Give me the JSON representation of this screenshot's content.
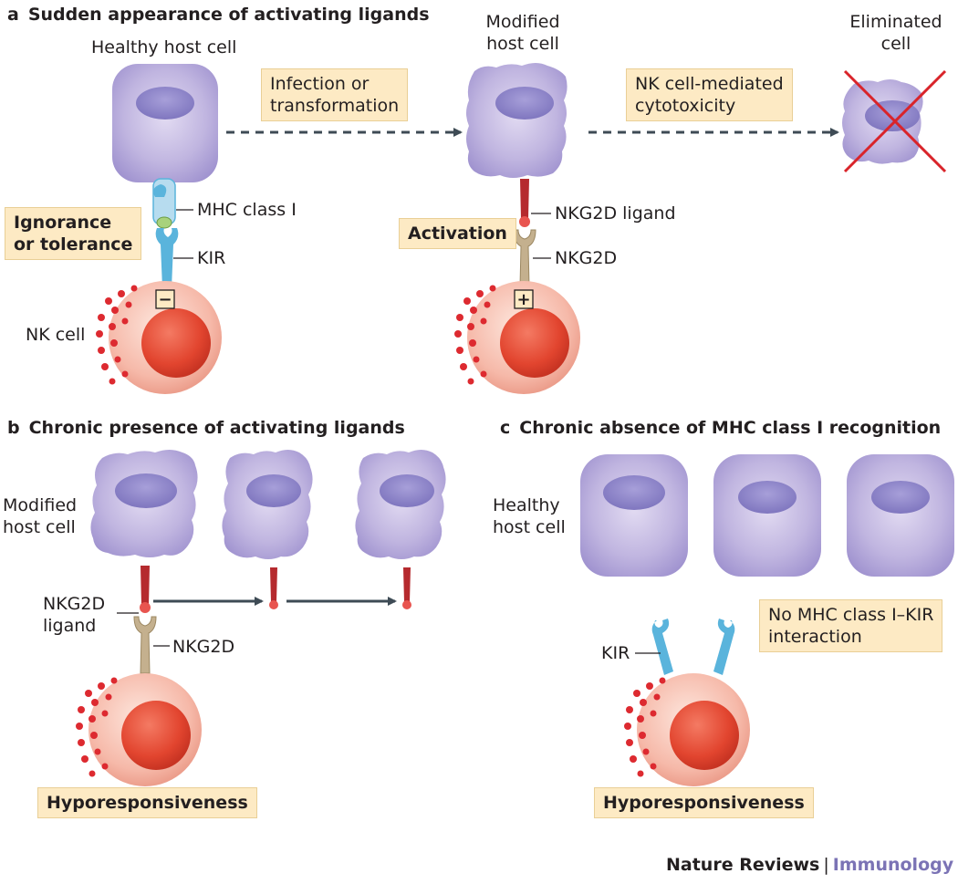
{
  "panel_a": {
    "letter": "a",
    "title": "Sudden appearance of activating ligands",
    "healthy_cell": "Healthy host cell",
    "modified_cell": [
      "Modified",
      "host cell"
    ],
    "eliminated_cell": [
      "Eliminated",
      "cell"
    ],
    "step1": [
      "Infection or",
      "transformation"
    ],
    "step2": [
      "NK cell-mediated",
      "cytotoxicity"
    ],
    "ignorance": [
      "Ignorance",
      "or tolerance"
    ],
    "mhc": "MHC class I",
    "kir": "KIR",
    "nk_cell": "NK cell",
    "activation": "Activation",
    "nkg2d_ligand": "NKG2D ligand",
    "nkg2d": "NKG2D",
    "minus_sign": "−",
    "plus_sign": "+"
  },
  "panel_b": {
    "letter": "b",
    "title": "Chronic presence of activating ligands",
    "modified_cell": [
      "Modified",
      "host cell"
    ],
    "nkg2d_ligand": [
      "NKG2D",
      "ligand"
    ],
    "nkg2d": "NKG2D",
    "outcome": "Hyporesponsiveness"
  },
  "panel_c": {
    "letter": "c",
    "title": "Chronic absence of MHC class I recognition",
    "healthy_cell": [
      "Healthy",
      "host cell"
    ],
    "no_interaction": [
      "No MHC class I–KIR",
      "interaction"
    ],
    "kir": "KIR",
    "outcome": "Hyporesponsiveness"
  },
  "footer": {
    "publisher": "Nature Reviews",
    "separator": "|",
    "journal": "Immunology"
  },
  "colors": {
    "host_cell": "#b3a6d8",
    "nucleus": "#8d84c8",
    "nk_cell": "#f8c9bd",
    "nk_nucleus": "#e5523f",
    "granule": "#dd2a30",
    "ligand": "#b52a2e",
    "kir": "#5ab4dc",
    "mhc": "#b7dcef",
    "nkg2d": "#c4b08e",
    "arrow": "#3e4b55",
    "label_box": "#fdeac4",
    "cross": "#d9242a",
    "journal": "#7b73b5"
  }
}
